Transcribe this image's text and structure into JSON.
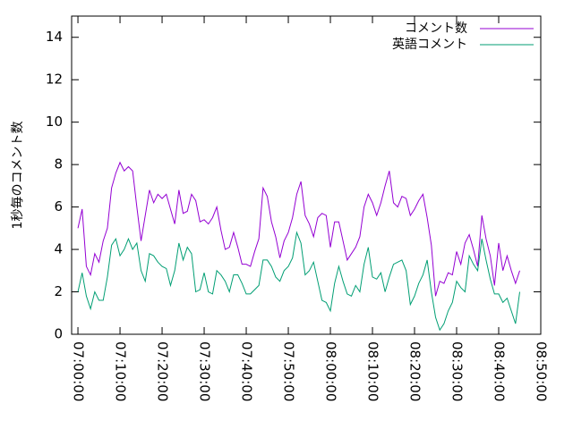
{
  "chart_data": {
    "type": "line",
    "ylabel": "1秒毎のコメント数",
    "x": [
      "07:00:00",
      "07:01:00",
      "07:02:00",
      "07:03:00",
      "07:04:00",
      "07:05:00",
      "07:06:00",
      "07:07:00",
      "07:08:00",
      "07:09:00",
      "07:10:00",
      "07:11:00",
      "07:12:00",
      "07:13:00",
      "07:14:00",
      "07:15:00",
      "07:16:00",
      "07:17:00",
      "07:18:00",
      "07:19:00",
      "07:20:00",
      "07:21:00",
      "07:22:00",
      "07:23:00",
      "07:24:00",
      "07:25:00",
      "07:26:00",
      "07:27:00",
      "07:28:00",
      "07:29:00",
      "07:30:00",
      "07:31:00",
      "07:32:00",
      "07:33:00",
      "07:34:00",
      "07:35:00",
      "07:36:00",
      "07:37:00",
      "07:38:00",
      "07:39:00",
      "07:40:00",
      "07:41:00",
      "07:42:00",
      "07:43:00",
      "07:44:00",
      "07:45:00",
      "07:46:00",
      "07:47:00",
      "07:48:00",
      "07:49:00",
      "07:50:00",
      "07:51:00",
      "07:52:00",
      "07:53:00",
      "07:54:00",
      "07:55:00",
      "07:56:00",
      "07:57:00",
      "07:58:00",
      "07:59:00",
      "08:00:00",
      "08:01:00",
      "08:02:00",
      "08:03:00",
      "08:04:00",
      "08:05:00",
      "08:06:00",
      "08:07:00",
      "08:08:00",
      "08:09:00",
      "08:10:00",
      "08:11:00",
      "08:12:00",
      "08:13:00",
      "08:14:00",
      "08:15:00",
      "08:16:00",
      "08:17:00",
      "08:18:00",
      "08:19:00",
      "08:20:00",
      "08:21:00",
      "08:22:00",
      "08:23:00",
      "08:24:00",
      "08:25:00",
      "08:26:00",
      "08:27:00",
      "08:28:00",
      "08:29:00",
      "08:30:00",
      "08:31:00",
      "08:32:00",
      "08:33:00",
      "08:34:00",
      "08:35:00",
      "08:36:00",
      "08:37:00",
      "08:38:00",
      "08:39:00",
      "08:40:00",
      "08:41:00",
      "08:42:00",
      "08:43:00",
      "08:44:00",
      "08:45:00"
    ],
    "series": [
      {
        "name": "コメント数",
        "color": "#9400d3",
        "values": [
          5.0,
          5.9,
          3.2,
          2.8,
          3.8,
          3.4,
          4.4,
          5.0,
          6.9,
          7.6,
          8.1,
          7.7,
          7.9,
          7.7,
          6.0,
          4.4,
          5.6,
          6.8,
          6.2,
          6.6,
          6.4,
          6.6,
          5.9,
          5.2,
          6.8,
          5.7,
          5.8,
          6.6,
          6.3,
          5.3,
          5.4,
          5.2,
          5.5,
          6.0,
          4.9,
          4.0,
          4.1,
          4.8,
          4.1,
          3.3,
          3.3,
          3.2,
          3.9,
          4.5,
          6.9,
          6.5,
          5.3,
          4.6,
          3.6,
          4.4,
          4.8,
          5.5,
          6.6,
          7.2,
          5.6,
          5.2,
          4.6,
          5.5,
          5.7,
          5.6,
          4.1,
          5.3,
          5.3,
          4.4,
          3.5,
          3.8,
          4.1,
          4.6,
          6.0,
          6.6,
          6.2,
          5.6,
          6.2,
          7.0,
          7.7,
          6.2,
          6.0,
          6.5,
          6.4,
          5.6,
          5.9,
          6.3,
          6.6,
          5.5,
          4.2,
          1.8,
          2.5,
          2.4,
          2.9,
          2.8,
          3.9,
          3.3,
          4.3,
          4.7,
          4.0,
          3.2,
          5.6,
          4.5,
          3.7,
          2.3,
          4.3,
          3.0,
          3.7,
          3.0,
          2.4,
          3.0
        ]
      },
      {
        "name": "英語コメント",
        "color": "#009e73",
        "values": [
          2.0,
          2.9,
          1.8,
          1.2,
          2.0,
          1.6,
          1.6,
          2.7,
          4.2,
          4.5,
          3.7,
          4.0,
          4.5,
          4.0,
          4.3,
          3.0,
          2.5,
          3.8,
          3.7,
          3.4,
          3.2,
          3.1,
          2.3,
          3.0,
          4.3,
          3.5,
          4.1,
          3.8,
          2.0,
          2.1,
          2.9,
          2.0,
          1.9,
          3.0,
          2.8,
          2.5,
          2.0,
          2.8,
          2.8,
          2.4,
          1.9,
          1.9,
          2.1,
          2.3,
          3.5,
          3.5,
          3.2,
          2.7,
          2.5,
          3.0,
          3.2,
          3.6,
          4.8,
          4.3,
          2.8,
          3.0,
          3.4,
          2.5,
          1.6,
          1.5,
          1.1,
          2.4,
          3.2,
          2.5,
          1.9,
          1.8,
          2.3,
          2.0,
          3.3,
          4.1,
          2.7,
          2.6,
          2.9,
          2.0,
          2.7,
          3.3,
          3.4,
          3.5,
          3.0,
          1.4,
          1.8,
          2.4,
          2.8,
          3.5,
          2.0,
          0.8,
          0.2,
          0.5,
          1.1,
          1.5,
          2.5,
          2.2,
          2.0,
          3.7,
          3.3,
          3.0,
          4.5,
          3.5,
          2.6,
          1.9,
          1.9,
          1.5,
          1.7,
          1.1,
          0.5,
          2.0
        ]
      }
    ],
    "xlim": [
      "06:58:30",
      "08:50:00"
    ],
    "xticks": [
      "07:00:00",
      "07:10:00",
      "07:20:00",
      "07:30:00",
      "07:40:00",
      "07:50:00",
      "08:00:00",
      "08:10:00",
      "08:20:00",
      "08:30:00",
      "08:40:00",
      "08:50:00"
    ],
    "ylim": [
      0,
      15
    ],
    "yticks": [
      0,
      2,
      4,
      6,
      8,
      10,
      12,
      14
    ],
    "grid": false,
    "legend": "top-right"
  }
}
